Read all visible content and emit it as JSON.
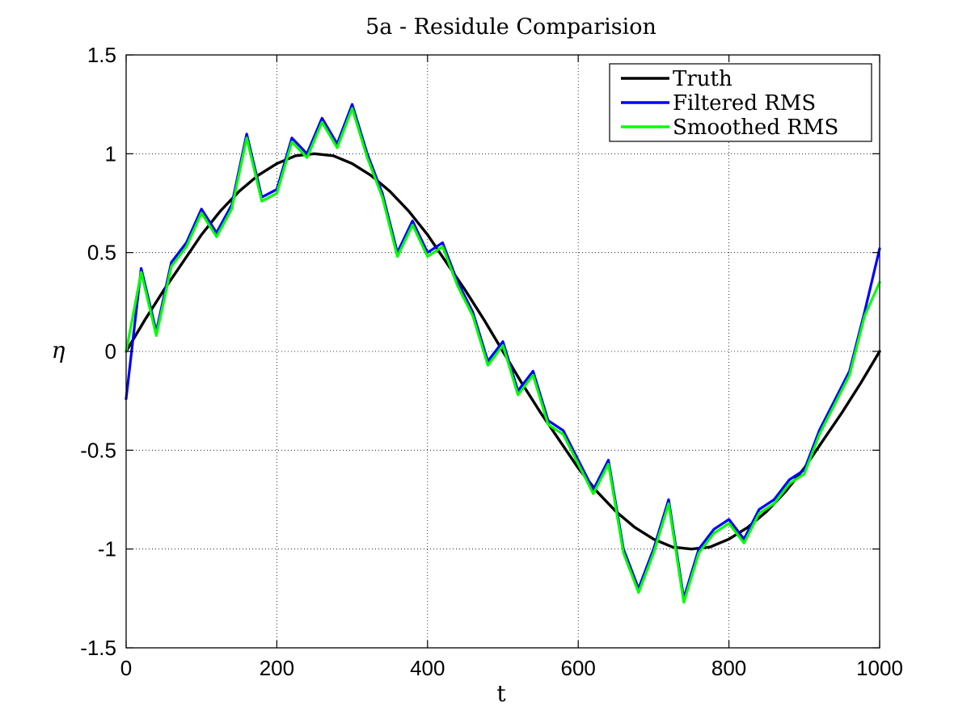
{
  "chart_data": {
    "type": "line",
    "title": "5a - Residule Comparision",
    "xlabel": "t",
    "ylabel": "η",
    "xlim": [
      0,
      1000
    ],
    "ylim": [
      -1.5,
      1.5
    ],
    "xticks": [
      "0",
      "200",
      "400",
      "600",
      "800",
      "1000"
    ],
    "yticks": [
      "1.5",
      "1",
      "0.5",
      "0",
      "-0.5",
      "-1",
      "-1.5"
    ],
    "xtick_values": [
      0,
      200,
      400,
      600,
      800,
      1000
    ],
    "ytick_values": [
      1.5,
      1,
      0.5,
      0,
      -0.5,
      -1,
      -1.5
    ],
    "grid": true,
    "legend_position": "top-right",
    "series": [
      {
        "name": "Truth",
        "color": "#000000",
        "x": [
          0,
          25,
          50,
          75,
          100,
          125,
          150,
          175,
          200,
          225,
          250,
          275,
          300,
          325,
          350,
          375,
          400,
          425,
          450,
          475,
          500,
          525,
          550,
          575,
          600,
          625,
          650,
          675,
          700,
          725,
          750,
          775,
          800,
          825,
          850,
          875,
          900,
          925,
          950,
          975,
          1000
        ],
        "y": [
          0.0,
          0.16,
          0.31,
          0.45,
          0.59,
          0.71,
          0.81,
          0.89,
          0.95,
          0.99,
          1.0,
          0.99,
          0.95,
          0.89,
          0.81,
          0.71,
          0.59,
          0.45,
          0.31,
          0.16,
          0.0,
          -0.16,
          -0.31,
          -0.45,
          -0.59,
          -0.71,
          -0.81,
          -0.89,
          -0.95,
          -0.99,
          -1.0,
          -0.99,
          -0.95,
          -0.89,
          -0.81,
          -0.71,
          -0.59,
          -0.45,
          -0.31,
          -0.16,
          0.0
        ]
      },
      {
        "name": "Filtered RMS",
        "color": "#0000ff",
        "x": [
          0,
          20,
          40,
          60,
          80,
          100,
          120,
          140,
          160,
          180,
          200,
          220,
          240,
          260,
          280,
          300,
          320,
          340,
          360,
          380,
          400,
          420,
          440,
          460,
          480,
          500,
          520,
          540,
          560,
          580,
          600,
          620,
          640,
          660,
          680,
          700,
          720,
          740,
          760,
          780,
          800,
          820,
          840,
          860,
          880,
          900,
          920,
          940,
          960,
          980,
          1000
        ],
        "y": [
          -0.24,
          0.42,
          0.1,
          0.45,
          0.55,
          0.72,
          0.6,
          0.74,
          1.1,
          0.78,
          0.82,
          1.08,
          1.0,
          1.18,
          1.05,
          1.25,
          1.0,
          0.8,
          0.5,
          0.66,
          0.5,
          0.55,
          0.35,
          0.2,
          -0.05,
          0.05,
          -0.2,
          -0.1,
          -0.35,
          -0.4,
          -0.55,
          -0.7,
          -0.55,
          -1.0,
          -1.2,
          -1.0,
          -0.75,
          -1.25,
          -1.0,
          -0.9,
          -0.85,
          -0.95,
          -0.8,
          -0.75,
          -0.65,
          -0.6,
          -0.4,
          -0.25,
          -0.1,
          0.2,
          0.52
        ]
      },
      {
        "name": "Smoothed RMS",
        "color": "#00ff00",
        "x": [
          0,
          20,
          40,
          60,
          80,
          100,
          120,
          140,
          160,
          180,
          200,
          220,
          240,
          260,
          280,
          300,
          320,
          340,
          360,
          380,
          400,
          420,
          440,
          460,
          480,
          500,
          520,
          540,
          560,
          580,
          600,
          620,
          640,
          660,
          680,
          700,
          720,
          740,
          760,
          780,
          800,
          820,
          840,
          860,
          880,
          900,
          920,
          940,
          960,
          980,
          1000
        ],
        "y": [
          0.0,
          0.4,
          0.08,
          0.43,
          0.53,
          0.7,
          0.58,
          0.72,
          1.08,
          0.76,
          0.8,
          1.06,
          0.98,
          1.16,
          1.03,
          1.23,
          0.98,
          0.78,
          0.48,
          0.64,
          0.48,
          0.53,
          0.33,
          0.18,
          -0.07,
          0.03,
          -0.22,
          -0.12,
          -0.37,
          -0.42,
          -0.57,
          -0.72,
          -0.57,
          -1.02,
          -1.22,
          -1.02,
          -0.77,
          -1.27,
          -1.02,
          -0.92,
          -0.87,
          -0.97,
          -0.82,
          -0.77,
          -0.67,
          -0.62,
          -0.42,
          -0.27,
          -0.12,
          0.18,
          0.35
        ]
      }
    ]
  }
}
